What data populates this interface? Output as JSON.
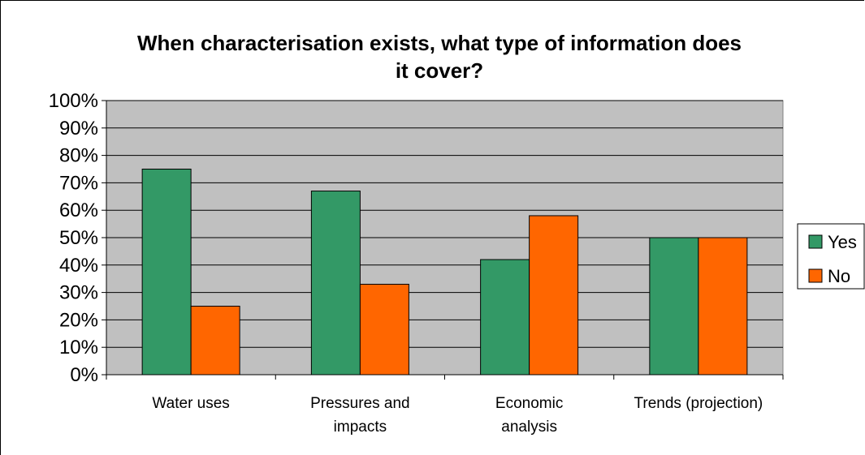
{
  "chart_data": {
    "type": "bar",
    "title_lines": [
      "When characterisation exists, what type of information does",
      "it cover?"
    ],
    "xlabel": "",
    "ylabel": "",
    "categories": [
      [
        "Water uses"
      ],
      [
        "Pressures and",
        "impacts"
      ],
      [
        "Economic",
        "analysis"
      ],
      [
        "Trends (projection)"
      ]
    ],
    "series": [
      {
        "name": "Yes",
        "values": [
          75,
          67,
          42,
          50
        ],
        "color": "#339966"
      },
      {
        "name": "No",
        "values": [
          25,
          33,
          58,
          50
        ],
        "color": "#ff6600"
      }
    ],
    "ylim": [
      0,
      100
    ],
    "yticks": [
      "0%",
      "10%",
      "20%",
      "30%",
      "40%",
      "50%",
      "60%",
      "70%",
      "80%",
      "90%",
      "100%"
    ],
    "grid": true,
    "plot_background": "#c0c0c0",
    "legend_position": "right"
  }
}
